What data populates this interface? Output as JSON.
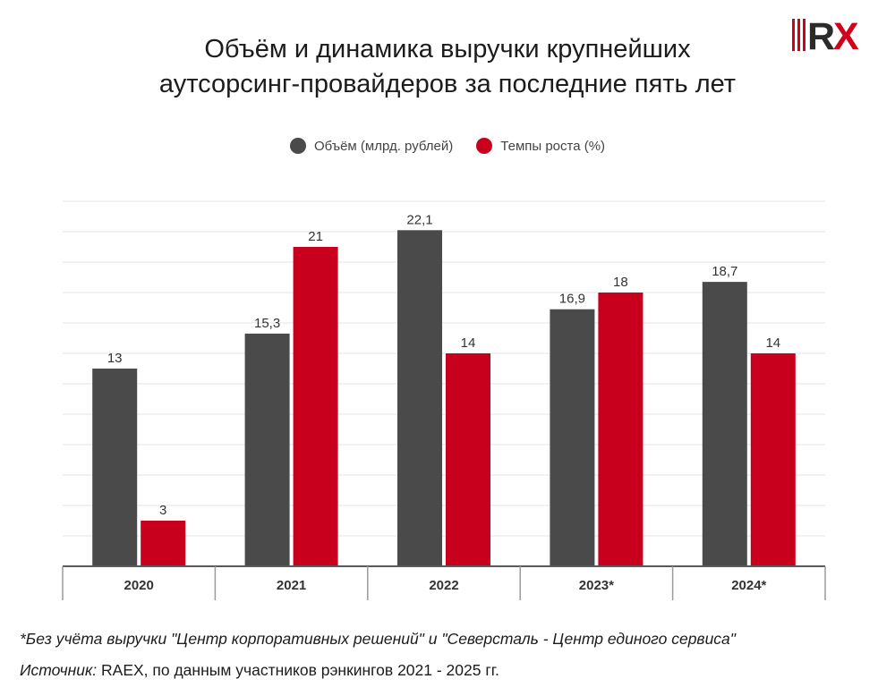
{
  "title": {
    "line1": "Объём и динамика выручки крупнейших",
    "line2": "аутсорсинг-провайдеров за последние пять лет"
  },
  "logo": {
    "text": "RX",
    "colors": {
      "bars": "#d0021b",
      "letters": "#2b2b2b",
      "accent": "#d0021b"
    }
  },
  "legend": [
    {
      "label": "Объём (млрд. рублей)",
      "color": "#4a4a4a"
    },
    {
      "label": "Темпы роста (%)",
      "color": "#c8001e"
    }
  ],
  "chart_data": {
    "type": "bar",
    "categories": [
      "2020",
      "2021",
      "2022",
      "2023*",
      "2024*"
    ],
    "series": [
      {
        "name": "Объём (млрд. рублей)",
        "values": [
          13,
          15.3,
          22.1,
          16.9,
          18.7
        ],
        "labels": [
          "13",
          "15,3",
          "22,1",
          "16,9",
          "18,7"
        ],
        "color": "#4a4a4a"
      },
      {
        "name": "Темпы роста (%)",
        "values": [
          3,
          21,
          14,
          18,
          14
        ],
        "labels": [
          "3",
          "21",
          "14",
          "18",
          "14"
        ],
        "color": "#c8001e"
      }
    ],
    "ylim": [
      0,
      24
    ],
    "grid": true,
    "legend_position": "top-center",
    "xlabel": "",
    "ylabel": ""
  },
  "footnote": "*Без учёта выручки \"Центр корпоративных решений\" и \"Северсталь - Центр единого сервиса\"",
  "source": {
    "label": "Источник:",
    "text": " RAEX, по данным участников рэнкингов 2021 - 2025 гг."
  }
}
